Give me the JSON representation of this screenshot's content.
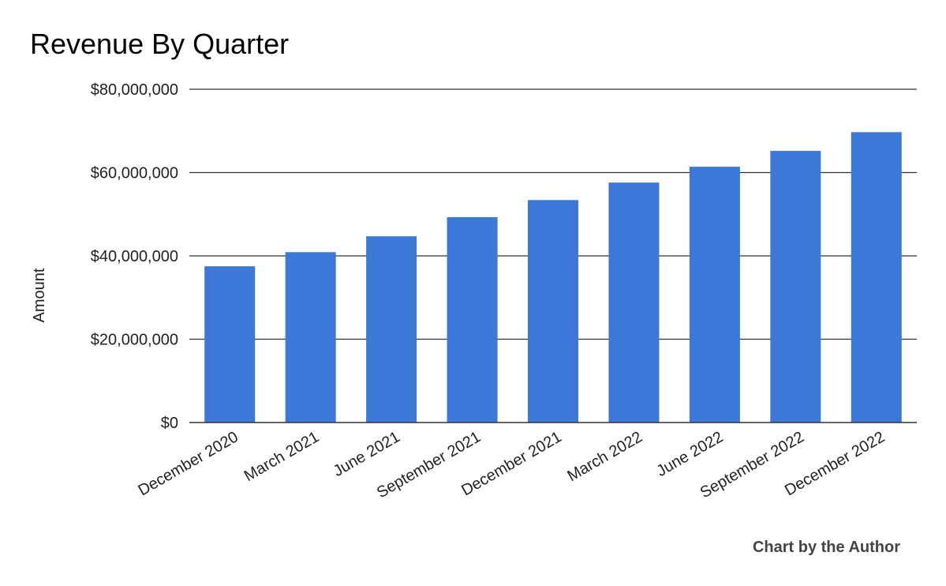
{
  "chart_data": {
    "type": "bar",
    "title": "Revenue By Quarter",
    "xlabel": "",
    "ylabel": "Amount",
    "categories": [
      "December 2020",
      "March 2021",
      "June 2021",
      "September 2021",
      "December 2021",
      "March 2022",
      "June 2022",
      "September 2022",
      "December 2022"
    ],
    "values": [
      37500000,
      40900000,
      44700000,
      49300000,
      53400000,
      57600000,
      61400000,
      65200000,
      69700000
    ],
    "ylim": [
      0,
      80000000
    ],
    "y_ticks": [
      {
        "value": 0,
        "label": "$0"
      },
      {
        "value": 20000000,
        "label": "$20,000,000"
      },
      {
        "value": 40000000,
        "label": "$40,000,000"
      },
      {
        "value": 60000000,
        "label": "$60,000,000"
      },
      {
        "value": 80000000,
        "label": "$80,000,000"
      }
    ],
    "grid": true,
    "legend": "none",
    "bar_color": "#3c78d8",
    "credit": "Chart by the Author"
  }
}
